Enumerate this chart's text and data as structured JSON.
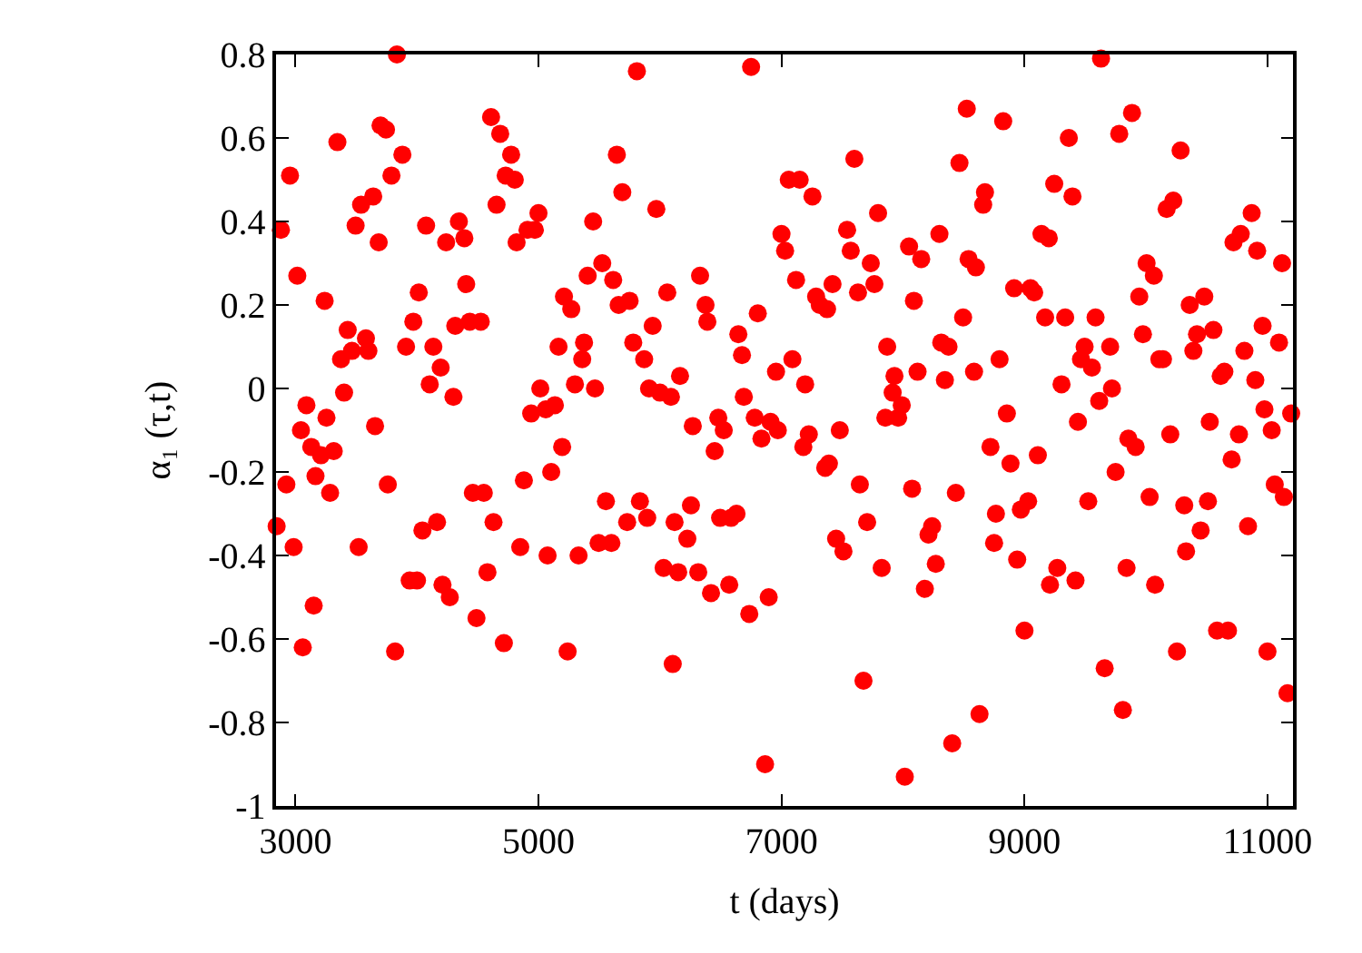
{
  "chart_data": {
    "type": "scatter",
    "xlabel": "t (days)",
    "ylabel": "α₁ (τ,t)",
    "xlim": [
      2840,
      11210
    ],
    "xticks": [
      3000,
      5000,
      7000,
      9000,
      11000
    ],
    "ylim": [
      -1,
      0.8
    ],
    "yticks": [
      -1,
      -0.8,
      -0.6,
      -0.4,
      -0.2,
      0,
      0.2,
      0.4,
      0.6,
      0.8
    ],
    "marker": "circle",
    "series": [
      {
        "color": "#ff0000",
        "x": [
          2880,
          2955,
          3015,
          3090,
          3045,
          3130,
          3210,
          3240,
          3255,
          3315,
          3345,
          3375,
          3400,
          3430,
          3465,
          3495,
          3540,
          3580,
          3600,
          3640,
          3655,
          3685,
          3700,
          3745,
          3790,
          3835,
          3880,
          3910,
          3970,
          4015,
          4075,
          4105,
          4135,
          4195,
          4240,
          4300,
          4315,
          4345,
          4390,
          4405,
          4435,
          4525,
          4610,
          4655,
          4685,
          4775,
          4730,
          4805,
          4820,
          4910,
          4970,
          5000,
          4940,
          5015,
          5060,
          5135,
          5165,
          5195,
          5210,
          5270,
          5300,
          5360,
          5375,
          5405,
          5450,
          5465,
          5525,
          5615,
          5645,
          5690,
          5660,
          5750,
          5780,
          5810,
          5870,
          5910,
          5940,
          5970,
          6000,
          6060,
          6090,
          6165,
          6750,
          6270,
          6330,
          6375,
          6390,
          6450,
          6480,
          6525,
          6645,
          6675,
          6690,
          6780,
          6805,
          6835,
          6910,
          6955,
          6970,
          7000,
          7030,
          7060,
          7090,
          7120,
          7150,
          7180,
          7195,
          7225,
          7255,
          7285,
          7315,
          7375,
          7360,
          7390,
          7420,
          7480,
          7540,
          7570,
          7600,
          7630,
          7735,
          7765,
          7795,
          7855,
          7870,
          7915,
          7930,
          7960,
          7990,
          8050,
          8090,
          8120,
          8150,
          8300,
          8315,
          8345,
          8375,
          8465,
          8495,
          8525,
          8540,
          8585,
          8600,
          8660,
          8675,
          8720,
          8795,
          8825,
          8855,
          8885,
          8915,
          9050,
          9080,
          9110,
          9140,
          9200,
          9170,
          9245,
          9305,
          9335,
          9365,
          9395,
          9440,
          9465,
          9495,
          9555,
          9585,
          9615,
          9630,
          9705,
          9720,
          9750,
          9780,
          9855,
          9885,
          9915,
          9945,
          9975,
          10005,
          10065,
          10110,
          10140,
          10170,
          10200,
          10225,
          10285,
          10360,
          10390,
          10420,
          10480,
          10525,
          10555,
          10615,
          10645,
          10705,
          10720,
          10765,
          10780,
          10810,
          10870,
          10900,
          10915,
          10960,
          10975,
          11035,
          11095,
          11120,
          11195,
          2845,
          2925,
          2985,
          3060,
          3150,
          3165,
          3285,
          3520,
          3760,
          3820,
          3940,
          4000,
          4045,
          4165,
          4210,
          4270,
          4460,
          4490,
          4550,
          4580,
          4630,
          4715,
          4850,
          4880,
          5075,
          5105,
          5240,
          5330,
          5495,
          5555,
          5600,
          5730,
          5835,
          5895,
          6030,
          6105,
          6120,
          6150,
          6225,
          6255,
          6315,
          6420,
          6495,
          6570,
          6585,
          6630,
          6735,
          6865,
          6895,
          7450,
          7510,
          7645,
          7675,
          7705,
          7825,
          8015,
          8075,
          8180,
          8210,
          8240,
          8270,
          8405,
          8435,
          8630,
          8750,
          8765,
          8940,
          8970,
          9000,
          9030,
          9210,
          9270,
          9420,
          9525,
          9660,
          9810,
          9840,
          10030,
          10075,
          10255,
          10315,
          10330,
          10450,
          10510,
          10585,
          10675,
          10840,
          11000,
          11060,
          11135,
          11165
        ],
        "values": [
          0.38,
          0.51,
          0.27,
          -0.04,
          -0.1,
          -0.14,
          -0.16,
          0.21,
          -0.07,
          -0.15,
          0.59,
          0.07,
          -0.01,
          0.14,
          0.09,
          0.39,
          0.44,
          0.12,
          0.09,
          0.46,
          -0.09,
          0.35,
          0.63,
          0.62,
          0.51,
          0.8,
          0.56,
          0.1,
          0.16,
          0.23,
          0.39,
          0.01,
          0.1,
          0.05,
          0.35,
          -0.02,
          0.15,
          0.4,
          0.36,
          0.25,
          0.16,
          0.16,
          0.65,
          0.44,
          0.61,
          0.56,
          0.51,
          0.5,
          0.35,
          0.38,
          0.38,
          0.42,
          -0.06,
          0.0,
          -0.05,
          -0.04,
          0.1,
          -0.14,
          0.22,
          0.19,
          0.01,
          0.07,
          0.11,
          0.27,
          0.4,
          0.0,
          0.3,
          0.26,
          0.56,
          0.47,
          0.2,
          0.21,
          0.11,
          0.76,
          0.07,
          0.0,
          0.15,
          0.43,
          -0.01,
          0.23,
          -0.02,
          0.03,
          0.77,
          -0.09,
          0.27,
          0.2,
          0.16,
          -0.15,
          -0.07,
          -0.1,
          0.13,
          0.08,
          -0.02,
          -0.07,
          0.18,
          -0.12,
          -0.08,
          0.04,
          -0.1,
          0.37,
          0.33,
          0.5,
          0.07,
          0.26,
          0.5,
          -0.14,
          0.01,
          -0.11,
          0.46,
          0.22,
          0.2,
          0.19,
          -0.19,
          -0.18,
          0.25,
          -0.1,
          0.38,
          0.33,
          0.55,
          0.23,
          0.3,
          0.25,
          0.42,
          -0.07,
          0.1,
          -0.01,
          0.03,
          -0.07,
          -0.04,
          0.34,
          0.21,
          0.04,
          0.31,
          0.37,
          0.11,
          0.02,
          0.1,
          0.54,
          0.17,
          0.67,
          0.31,
          0.04,
          0.29,
          0.44,
          0.47,
          -0.14,
          0.07,
          0.64,
          -0.06,
          -0.18,
          0.24,
          0.24,
          0.23,
          -0.16,
          0.37,
          0.36,
          0.17,
          0.49,
          0.01,
          0.17,
          0.6,
          0.46,
          -0.08,
          0.07,
          0.1,
          0.05,
          0.17,
          -0.03,
          0.79,
          0.1,
          0.0,
          -0.2,
          0.61,
          -0.12,
          0.66,
          -0.14,
          0.22,
          0.13,
          0.3,
          0.27,
          0.07,
          0.07,
          0.43,
          -0.11,
          0.45,
          0.57,
          0.2,
          0.09,
          0.13,
          0.22,
          -0.08,
          0.14,
          0.03,
          0.04,
          -0.17,
          0.35,
          -0.11,
          0.37,
          0.09,
          0.42,
          0.02,
          0.33,
          0.15,
          -0.05,
          -0.1,
          0.11,
          0.3,
          -0.06,
          -0.33,
          -0.23,
          -0.38,
          -0.62,
          -0.52,
          -0.21,
          -0.25,
          -0.38,
          -0.23,
          -0.63,
          -0.46,
          -0.46,
          -0.34,
          -0.32,
          -0.47,
          -0.5,
          -0.25,
          -0.55,
          -0.25,
          -0.44,
          -0.32,
          -0.61,
          -0.38,
          -0.22,
          -0.4,
          -0.2,
          -0.63,
          -0.4,
          -0.37,
          -0.27,
          -0.37,
          -0.32,
          -0.27,
          -0.31,
          -0.43,
          -0.66,
          -0.32,
          -0.44,
          -0.36,
          -0.28,
          -0.44,
          -0.49,
          -0.31,
          -0.47,
          -0.31,
          -0.3,
          -0.54,
          -0.9,
          -0.5,
          -0.36,
          -0.39,
          -0.23,
          -0.7,
          -0.32,
          -0.43,
          -0.93,
          -0.24,
          -0.48,
          -0.35,
          -0.33,
          -0.42,
          -0.85,
          -0.25,
          -0.78,
          -0.37,
          -0.3,
          -0.41,
          -0.29,
          -0.58,
          -0.27,
          -0.47,
          -0.43,
          -0.46,
          -0.27,
          -0.67,
          -0.77,
          -0.43,
          -0.26,
          -0.47,
          -0.63,
          -0.28,
          -0.39,
          -0.34,
          -0.27,
          -0.58,
          -0.58,
          -0.33,
          -0.63,
          -0.23,
          -0.26,
          -0.73
        ]
      }
    ]
  }
}
